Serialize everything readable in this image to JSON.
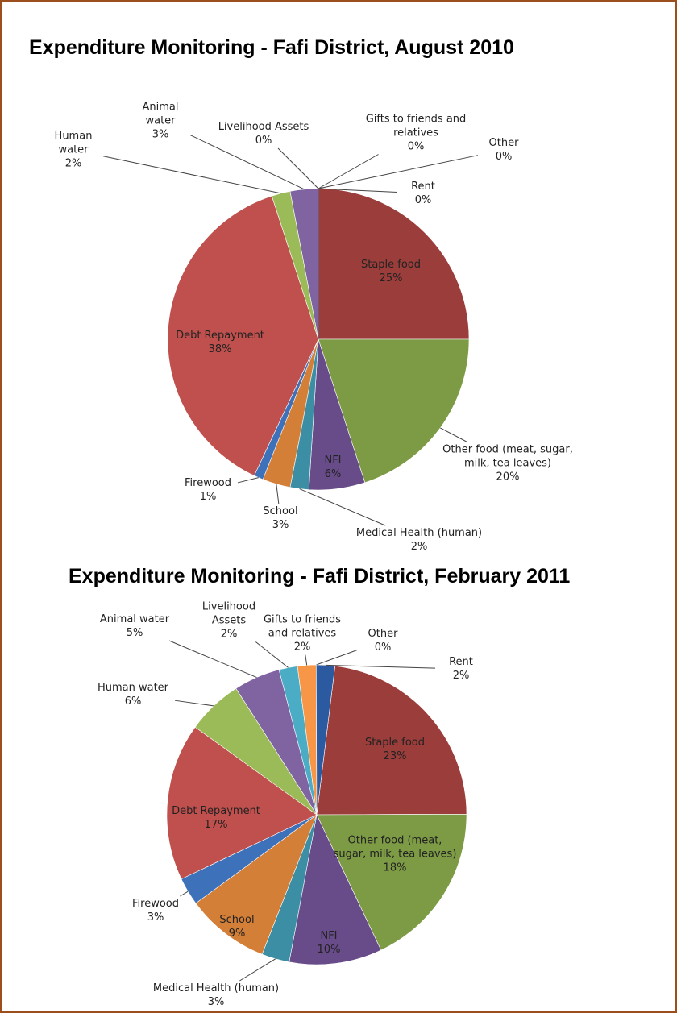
{
  "chart_data": [
    {
      "type": "pie",
      "title": "Expenditure Monitoring - Fafi District, August 2010",
      "start_angle": 0,
      "categories": [
        "Staple food",
        "Other food (meat, sugar, milk, tea leaves)",
        "NFI",
        "Medical Health (human)",
        "School",
        "Firewood",
        "Debt Repayment",
        "Human water",
        "Animal water",
        "Livelihood Assets",
        "Gifts to friends and relatives",
        "Other",
        "Rent"
      ],
      "values": [
        25,
        20,
        6,
        2,
        3,
        1,
        38,
        2,
        3,
        0,
        0,
        0,
        0
      ],
      "value_labels": [
        "25%",
        "20%",
        "6%",
        "2%",
        "3%",
        "1%",
        "38%",
        "2%",
        "3%",
        "0%",
        "0%",
        "0%",
        "0%"
      ],
      "colors": [
        "#9b3d3a",
        "#7d9b45",
        "#684b89",
        "#3b8ea3",
        "#d37f38",
        "#3d71ba",
        "#c0504d",
        "#9bbb59",
        "#8064a2",
        "#4bacc6",
        "#f79646",
        "#c5d5ea",
        "#2b5aa0"
      ]
    },
    {
      "type": "pie",
      "title": "Expenditure Monitoring - Fafi District, February 2011",
      "start_angle": 7,
      "categories": [
        "Staple food",
        "Other food (meat, sugar, milk, tea leaves)",
        "NFI",
        "Medical Health (human)",
        "School",
        "Firewood",
        "Debt Repayment",
        "Human water",
        "Animal water",
        "Livelihood Assets",
        "Gifts to friends and relatives",
        "Other",
        "Rent"
      ],
      "values": [
        23,
        18,
        10,
        3,
        9,
        3,
        17,
        6,
        5,
        2,
        2,
        0,
        2
      ],
      "value_labels": [
        "23%",
        "18%",
        "10%",
        "3%",
        "9%",
        "3%",
        "17%",
        "6%",
        "5%",
        "2%",
        "2%",
        "0%",
        "2%"
      ],
      "colors": [
        "#9b3d3a",
        "#7d9b45",
        "#684b89",
        "#3b8ea3",
        "#d37f38",
        "#3d71ba",
        "#c0504d",
        "#9bbb59",
        "#8064a2",
        "#4bacc6",
        "#f79646",
        "#c5d5ea",
        "#2b5aa0"
      ]
    }
  ]
}
